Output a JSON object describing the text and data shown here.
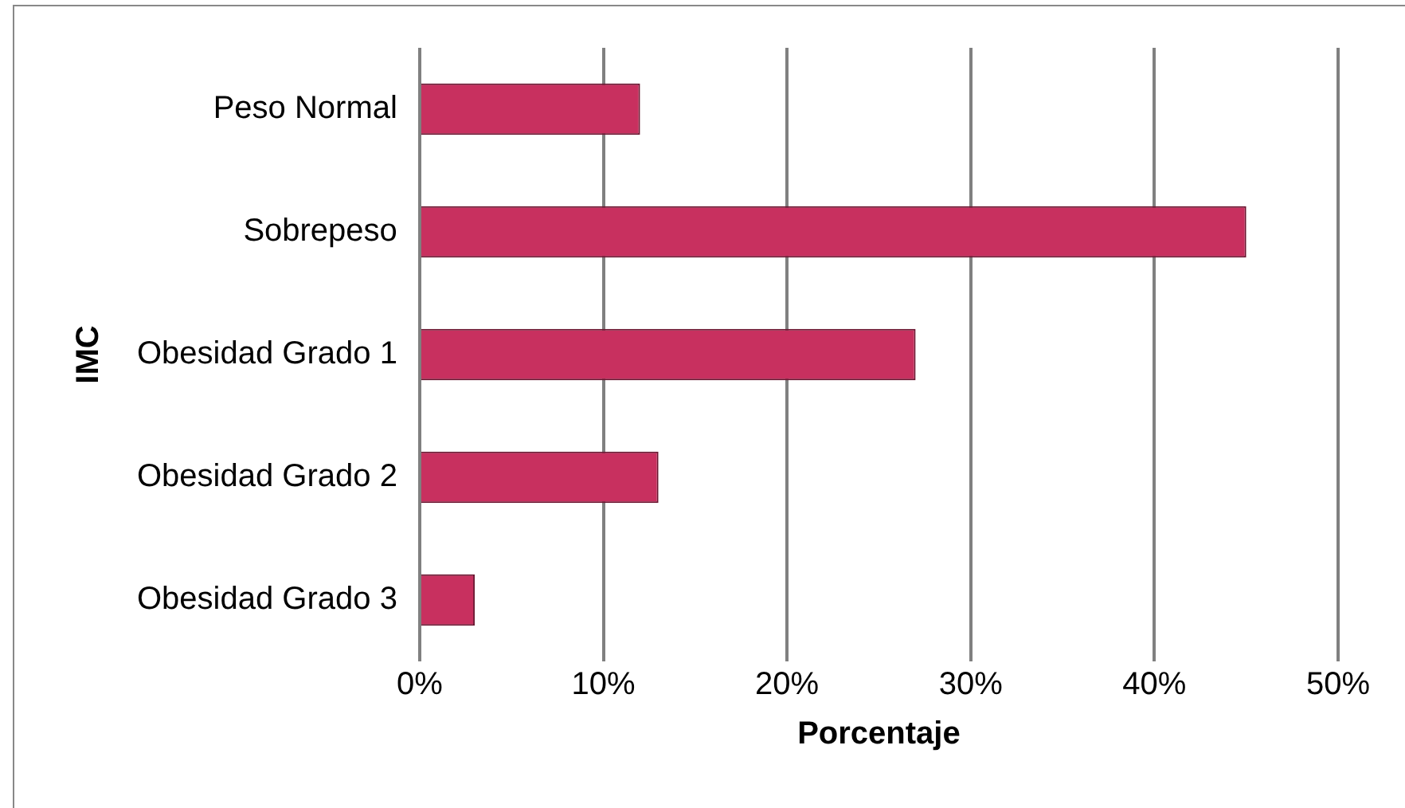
{
  "chart_data": {
    "type": "bar",
    "orientation": "horizontal",
    "xlabel": "Porcentaje",
    "ylabel": "IMC",
    "categories": [
      "Peso Normal",
      "Sobrepeso",
      "Obesidad Grado 1",
      "Obesidad Grado 2",
      "Obesidad Grado 3"
    ],
    "values": [
      12,
      45,
      27,
      13,
      3
    ],
    "color": "#c8305f",
    "xlim": [
      0,
      50
    ],
    "xticks": [
      {
        "value": 0,
        "label": "0%"
      },
      {
        "value": 10,
        "label": "10%"
      },
      {
        "value": 20,
        "label": "20%"
      },
      {
        "value": 30,
        "label": "30%"
      },
      {
        "value": 40,
        "label": "40%"
      },
      {
        "value": 50,
        "label": "50%"
      }
    ],
    "grid": "x",
    "legend": false
  }
}
